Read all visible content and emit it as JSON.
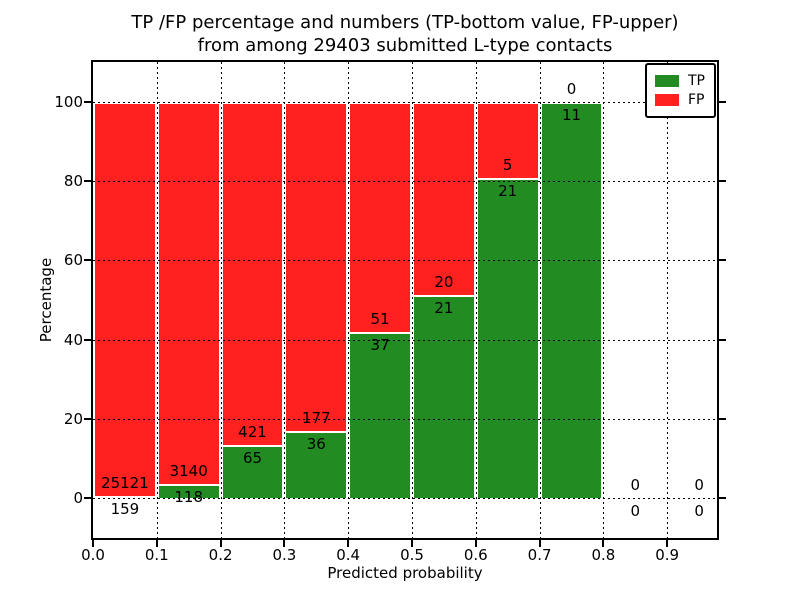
{
  "title": {
    "line1": "TP /FP percentage and numbers (TP-bottom value, FP-upper)",
    "line2": "from among 29403 submitted L-type contacts"
  },
  "legend": {
    "position": "upper right",
    "entries": [
      {
        "label": "TP",
        "color": "#228b22"
      },
      {
        "label": "FP",
        "color": "#ff2020"
      }
    ]
  },
  "chart_data": {
    "type": "bar",
    "stacked": true,
    "title": "TP /FP percentage and numbers (TP-bottom value, FP-upper)\nfrom among 29403 submitted L-type contacts",
    "xlabel": "Predicted probability",
    "ylabel": "Percentage",
    "total_submitted_contacts": 29403,
    "xlim": [
      0.0,
      0.975
    ],
    "ylim": [
      -10,
      110
    ],
    "grid": "dotted",
    "background": "#ffffff",
    "series_colors": {
      "TP": "#228b22",
      "FP": "#ff2020"
    },
    "xtick_labels": [
      "0.0",
      "0.1",
      "0.2",
      "0.3",
      "0.4",
      "0.5",
      "0.6",
      "0.7",
      "0.8",
      "0.9"
    ],
    "ytick_labels": [
      "0",
      "20",
      "40",
      "60",
      "80",
      "100"
    ],
    "yticks": [
      0,
      20,
      40,
      60,
      80,
      100
    ],
    "bins": [
      {
        "x_range": "0.0-0.1",
        "tp": 159,
        "fp": 25121,
        "tp_pct": 0.63,
        "fp_pct": 99.37
      },
      {
        "x_range": "0.1-0.2",
        "tp": 118,
        "fp": 3140,
        "tp_pct": 3.62,
        "fp_pct": 96.38
      },
      {
        "x_range": "0.2-0.3",
        "tp": 65,
        "fp": 421,
        "tp_pct": 13.37,
        "fp_pct": 86.63
      },
      {
        "x_range": "0.3-0.4",
        "tp": 36,
        "fp": 177,
        "tp_pct": 16.9,
        "fp_pct": 83.1
      },
      {
        "x_range": "0.4-0.5",
        "tp": 37,
        "fp": 51,
        "tp_pct": 42.05,
        "fp_pct": 57.95
      },
      {
        "x_range": "0.5-0.6",
        "tp": 21,
        "fp": 20,
        "tp_pct": 51.22,
        "fp_pct": 48.78
      },
      {
        "x_range": "0.6-0.7",
        "tp": 21,
        "fp": 5,
        "tp_pct": 80.77,
        "fp_pct": 19.23
      },
      {
        "x_range": "0.7-0.8",
        "tp": 11,
        "fp": 0,
        "tp_pct": 100.0,
        "fp_pct": 0.0
      },
      {
        "x_range": "0.8-0.9",
        "tp": 0,
        "fp": 0,
        "tp_pct": 0.0,
        "fp_pct": 0.0
      },
      {
        "x_range": "0.9-1.0",
        "tp": 0,
        "fp": 0,
        "tp_pct": 0.0,
        "fp_pct": 0.0
      }
    ]
  }
}
